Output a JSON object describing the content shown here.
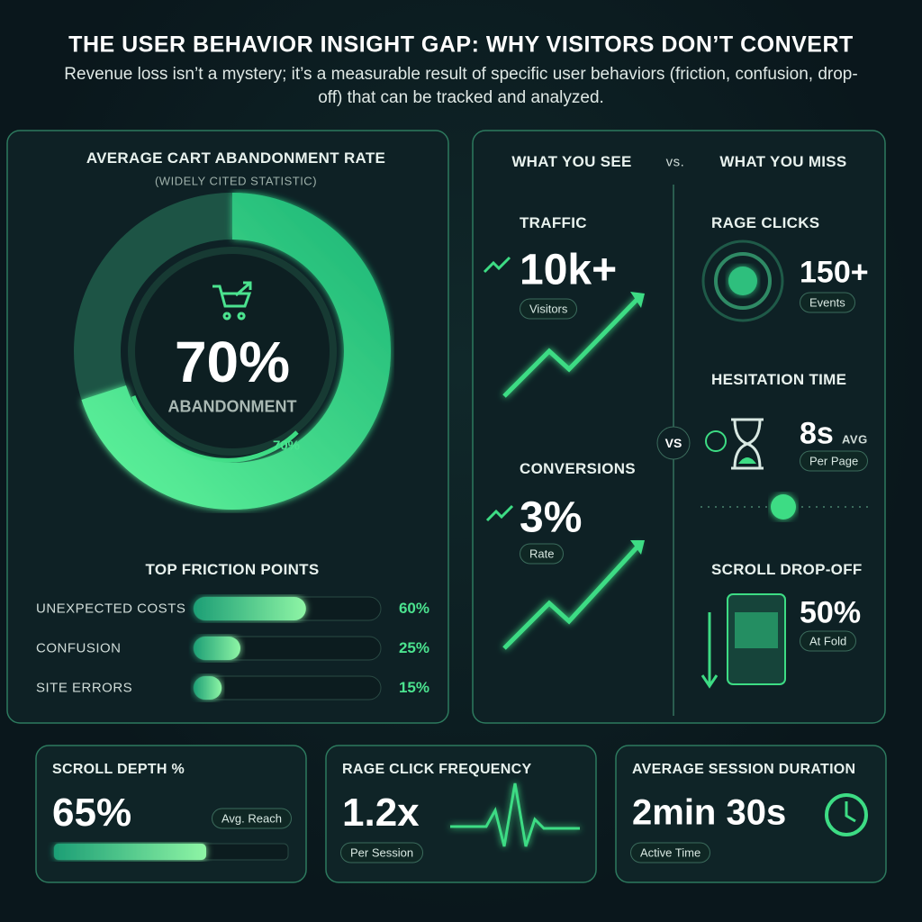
{
  "header": {
    "title": "THE USER BEHAVIOR INSIGHT GAP: WHY VISITORS DON’T CONVERT",
    "subtitle": "Revenue loss isn’t a mystery; it’s a measurable result of specific user behaviors (friction, confusion, drop-off) that can be tracked and analyzed."
  },
  "abandonment": {
    "title": "AVERAGE CART ABANDONMENT RATE",
    "note": "(WIDELY CITED STATISTIC)",
    "value": 70,
    "value_label": "70%",
    "caption": "ABANDONMENT",
    "ring_label": "70%"
  },
  "friction": {
    "title": "TOP FRICTION POINTS",
    "items": [
      {
        "label": "UNEXPECTED COSTS",
        "value": 60,
        "value_label": "60%"
      },
      {
        "label": "CONFUSION",
        "value": 25,
        "value_label": "25%"
      },
      {
        "label": "SITE ERRORS",
        "value": 15,
        "value_label": "15%"
      }
    ]
  },
  "comparison": {
    "see_header": "WHAT YOU SEE",
    "vs": "vs.",
    "miss_header": "WHAT YOU MISS",
    "center_vs": "VS",
    "see": [
      {
        "label": "TRAFFIC",
        "value": "10k+",
        "tag": "Visitors"
      },
      {
        "label": "CONVERSIONS",
        "value": "3%",
        "tag": "Rate"
      }
    ],
    "miss": [
      {
        "label": "RAGE CLICKS",
        "value": "150+",
        "tag": "Events"
      },
      {
        "label": "HESITATION TIME",
        "value": "8s",
        "unit": "AVG",
        "tag": "Per Page"
      },
      {
        "label": "SCROLL DROP-OFF",
        "value": "50%",
        "tag": "At Fold"
      }
    ]
  },
  "cards": [
    {
      "title": "SCROLL DEPTH %",
      "value": 65,
      "value_label": "65%",
      "tag": "Avg. Reach"
    },
    {
      "title": "RAGE CLICK FREQUENCY",
      "value_label": "1.2x",
      "tag": "Per Session"
    },
    {
      "title": "AVERAGE SESSION DURATION",
      "value_label": "2min 30s",
      "tag": "Active Time"
    }
  ]
}
